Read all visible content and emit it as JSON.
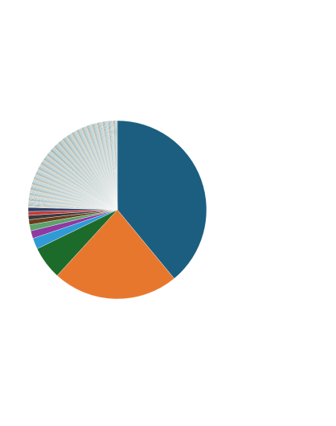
{
  "chart_data": {
    "type": "pie",
    "title": "",
    "legend_placement": "right",
    "legend_title": "",
    "start_angle_deg": 90,
    "direction": "clockwise",
    "major_slices": [
      {
        "value": 39.0,
        "color": "#1b5e80"
      },
      {
        "value": 22.8,
        "color": "#e8772e"
      },
      {
        "value": 6.0,
        "color": "#1d6b2b"
      },
      {
        "value": 2.0,
        "color": "#2f9ad6"
      },
      {
        "value": 1.4,
        "color": "#8f3aa0"
      },
      {
        "value": 1.1,
        "color": "#5aa36a"
      },
      {
        "value": 0.9,
        "color": "#6a3d1e"
      },
      {
        "value": 0.8,
        "color": "#3b3b3b"
      },
      {
        "value": 0.7,
        "color": "#c23b3b"
      },
      {
        "value": 0.7,
        "color": "#2c3e66"
      }
    ],
    "minor_slices": {
      "count": 300,
      "total_value": 24.6,
      "palette": [
        "#7fb3c9",
        "#a8d5a2",
        "#e9a3c9",
        "#f2c14e",
        "#5c7d8a",
        "#9aa7b0",
        "#2e8b8b",
        "#c7d9e8",
        "#4a6b7c",
        "#e0e0e0",
        "#6fae9a",
        "#b0c4de"
      ]
    }
  },
  "legend": {
    "title": "",
    "entries": []
  }
}
